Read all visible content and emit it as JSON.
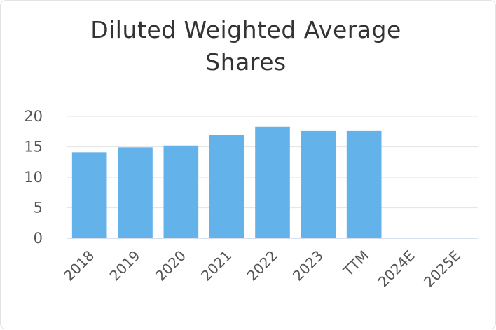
{
  "chart_data": {
    "type": "bar",
    "title_lines": [
      "Diluted Weighted Average",
      "Shares"
    ],
    "categories": [
      "2018",
      "2019",
      "2020",
      "2021",
      "2022",
      "2023",
      "TTM",
      "2024E",
      "2025E"
    ],
    "values": [
      14.1,
      14.9,
      15.2,
      17.0,
      18.3,
      17.6,
      17.6,
      null,
      null
    ],
    "yticks": [
      0,
      5,
      10,
      15,
      20
    ],
    "ylim": [
      0,
      20
    ],
    "grid": true,
    "xlabel": "",
    "ylabel": "",
    "colors": {
      "bar": "#63b3ea",
      "grid": "#e6e6e6",
      "axis": "#ccd6eb"
    }
  }
}
